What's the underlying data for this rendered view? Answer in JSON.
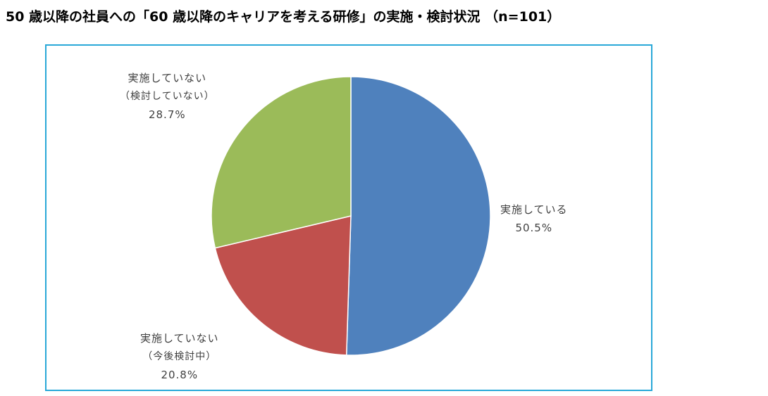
{
  "title": "50 歳以降の社員への「60 歳以降のキャリアを考える研修」の実施・検討状況 （n=101）",
  "chart_data": {
    "type": "pie",
    "title": "50 歳以降の社員への「60 歳以降のキャリアを考える研修」の実施・検討状況 （n=101）",
    "slices": [
      {
        "label": "実施している",
        "sublabel": "",
        "value": 50.5,
        "value_label": "50.5%",
        "color": "#4f81bd"
      },
      {
        "label": "実施していない",
        "sublabel": "（今後検討中）",
        "value": 20.8,
        "value_label": "20.8%",
        "color": "#c0504d"
      },
      {
        "label": "実施していない",
        "sublabel": "（検討していない）",
        "value": 28.7,
        "value_label": "28.7%",
        "color": "#9bbb59"
      }
    ],
    "start": "12 o'clock",
    "direction": "clockwise",
    "legend": "none"
  }
}
